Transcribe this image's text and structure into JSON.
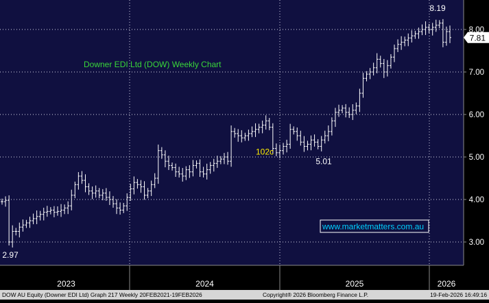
{
  "chart_data": {
    "type": "ohlc",
    "title": "Downer EDI Ltd (DOW) Weekly Chart",
    "ylim": [
      2.5,
      8.6
    ],
    "y_ticks": [
      "3.00",
      "4.00",
      "5.00",
      "6.00",
      "7.00",
      "8.00"
    ],
    "x_labels": [
      "2023",
      "2024",
      "2025",
      "2026"
    ],
    "last_price": "7.81",
    "grid": true,
    "annotations": [
      {
        "text": "8.19",
        "x": 638,
        "y": 8.19
      },
      {
        "text": "2.97",
        "x": 15,
        "y": 2.97
      },
      {
        "text": "102c",
        "x": 386,
        "y": 5.01
      },
      {
        "text": "5.01",
        "x": 472,
        "y": 5.01
      }
    ],
    "url_label": "www.marketmatters.com.au",
    "footer": {
      "left": "DOW AU Equity (Downer EDI Ltd) Graph 217 Weekly 20FEB2021-19FEB2026",
      "center": "Copyright® 2026 Bloomberg Finance L.P.",
      "right": "19-Feb-2026 16:49:16"
    },
    "series": [
      {
        "values": [
          3.95,
          3.98,
          3.0,
          3.25,
          3.25,
          3.35,
          3.4,
          3.45,
          3.5,
          3.55,
          3.6,
          3.65,
          3.7,
          3.72,
          3.75,
          3.7,
          3.72,
          3.75,
          3.8,
          3.85,
          4.1,
          4.35,
          4.55,
          4.45,
          4.3,
          4.2,
          4.15,
          4.2,
          4.1,
          4.15,
          4.05,
          4.0,
          3.9,
          3.8,
          3.75,
          3.85,
          4.05,
          4.25,
          4.4,
          4.35,
          4.3,
          4.1,
          4.2,
          4.35,
          4.5,
          5.15,
          5.05,
          4.9,
          4.8,
          4.75,
          4.65,
          4.6,
          4.55,
          4.7,
          4.65,
          4.8,
          4.85,
          4.65,
          4.6,
          4.7,
          4.8,
          4.85,
          4.9,
          4.95,
          5.0,
          4.9,
          5.6,
          5.55,
          5.5,
          5.45,
          5.5,
          5.55,
          5.6,
          5.65,
          5.7,
          5.75,
          5.85,
          5.7,
          5.2,
          5.1,
          5.15,
          5.25,
          5.3,
          5.65,
          5.6,
          5.5,
          5.35,
          5.25,
          5.3,
          5.4,
          5.35,
          5.25,
          5.4,
          5.5,
          5.6,
          5.85,
          6.05,
          6.1,
          6.15,
          6.05,
          6.0,
          6.1,
          6.2,
          6.5,
          6.85,
          6.95,
          7.0,
          7.1,
          7.3,
          7.2,
          7.0,
          7.15,
          7.35,
          7.55,
          7.65,
          7.7,
          7.75,
          7.8,
          7.85,
          7.9,
          7.95,
          8.0,
          8.05,
          8.0,
          8.05,
          8.1,
          8.15,
          7.7,
          7.95,
          7.81
        ]
      }
    ]
  }
}
